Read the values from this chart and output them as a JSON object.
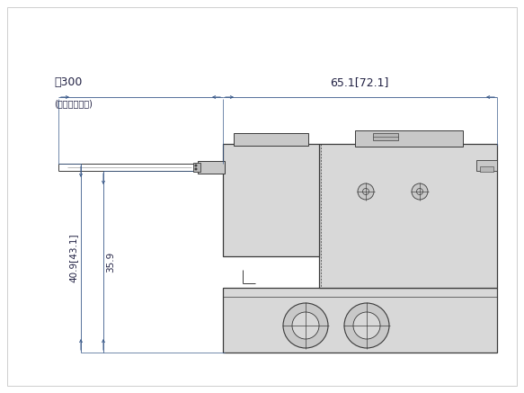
{
  "bg_color": "#ffffff",
  "line_color": "#3a3a3a",
  "fill_light": "#d8d8d8",
  "fill_mid": "#c8c8c8",
  "fill_dark": "#b8b8b8",
  "dim_color": "#3a5a8a",
  "text_color": "#222244",
  "dim_label_300": "約300",
  "dim_label_300b": "(リード線長さ)",
  "dim_label_651": "65.1[72.1]",
  "dim_label_409": "40.9[43.1]",
  "dim_label_359": "35.9",
  "figw": 5.83,
  "figh": 4.37,
  "dpi": 100
}
